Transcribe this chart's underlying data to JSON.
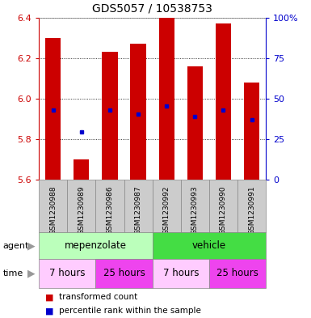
{
  "title": "GDS5057 / 10538753",
  "samples": [
    "GSM1230988",
    "GSM1230989",
    "GSM1230986",
    "GSM1230987",
    "GSM1230992",
    "GSM1230993",
    "GSM1230990",
    "GSM1230991"
  ],
  "bar_bottoms": [
    5.6,
    5.6,
    5.6,
    5.6,
    5.6,
    5.6,
    5.6,
    5.6
  ],
  "bar_tops": [
    6.3,
    5.7,
    6.23,
    6.27,
    6.4,
    6.16,
    6.37,
    6.08
  ],
  "blue_dots": [
    5.945,
    5.835,
    5.945,
    5.925,
    5.965,
    5.91,
    5.945,
    5.895
  ],
  "ylim": [
    5.6,
    6.4
  ],
  "y2lim": [
    0,
    100
  ],
  "yticks": [
    5.6,
    5.8,
    6.0,
    6.2,
    6.4
  ],
  "y2ticks": [
    0,
    25,
    50,
    75,
    100
  ],
  "bar_color": "#cc0000",
  "dot_color": "#0000cc",
  "groups": [
    {
      "label": "mepenzolate",
      "start": 0,
      "end": 4,
      "color": "#bbffbb"
    },
    {
      "label": "vehicle",
      "start": 4,
      "end": 8,
      "color": "#44dd44"
    }
  ],
  "time_groups": [
    {
      "label": "7 hours",
      "start": 0,
      "end": 2,
      "color": "#ffccff"
    },
    {
      "label": "25 hours",
      "start": 2,
      "end": 4,
      "color": "#ee44ee"
    },
    {
      "label": "7 hours",
      "start": 4,
      "end": 6,
      "color": "#ffccff"
    },
    {
      "label": "25 hours",
      "start": 6,
      "end": 8,
      "color": "#ee44ee"
    }
  ],
  "bar_color_legend": "#cc0000",
  "dot_color_legend": "#0000cc",
  "bar_width": 0.55,
  "tick_color_left": "#cc0000",
  "tick_color_right": "#0000cc",
  "title_fontsize": 10,
  "sample_fontsize": 6.5,
  "row_fontsize": 8.5,
  "legend_fontsize": 7.5
}
